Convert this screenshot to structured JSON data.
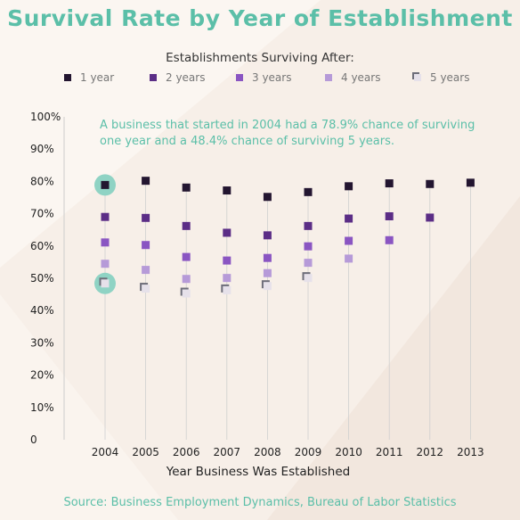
{
  "header": {
    "title": "Survival Rate by Year of Establishment"
  },
  "legend": {
    "title": "Establishments Surviving After:",
    "items": [
      {
        "label": "1 year",
        "color": "#231530"
      },
      {
        "label": "2 years",
        "color": "#5b2d86"
      },
      {
        "label": "3 years",
        "color": "#8a55c2"
      },
      {
        "label": "4 years",
        "color": "#b69ad8"
      },
      {
        "label": "5 years",
        "color": "#e6e1ea"
      }
    ]
  },
  "annotation": "A business that started in 2004 had a 78.9% chance of surviving one year and a 48.4% chance of surviving 5 years.",
  "source": "Source: Business Employment Dynamics, Bureau of Labor Statistics",
  "chart_data": {
    "type": "scatter",
    "xlabel": "Year Business Was Established",
    "ylabel": "",
    "categories": [
      "2004",
      "2005",
      "2006",
      "2007",
      "2008",
      "2009",
      "2010",
      "2011",
      "2012",
      "2013"
    ],
    "ylim": [
      0,
      100
    ],
    "yticks": [
      0,
      10,
      20,
      30,
      40,
      50,
      60,
      70,
      80,
      90,
      100
    ],
    "ytick_labels": [
      "0",
      "10%",
      "20%",
      "30%",
      "40%",
      "50%",
      "60%",
      "70%",
      "80%",
      "90%",
      "100%"
    ],
    "highlight": {
      "category": "2004",
      "series": [
        "1 year",
        "5 years"
      ],
      "color": "#8fd3c4"
    },
    "series": [
      {
        "name": "1 year",
        "color": "#231530",
        "values": [
          78.9,
          80.2,
          78.1,
          77.2,
          75.2,
          76.7,
          78.5,
          79.4,
          79.2,
          79.6
        ]
      },
      {
        "name": "2 years",
        "color": "#5b2d86",
        "values": [
          69.0,
          68.7,
          66.2,
          64.1,
          63.3,
          66.2,
          68.5,
          69.2,
          68.8,
          null
        ]
      },
      {
        "name": "3 years",
        "color": "#8a55c2",
        "values": [
          61.1,
          60.3,
          56.6,
          55.5,
          56.3,
          59.9,
          61.6,
          61.8,
          null,
          null
        ]
      },
      {
        "name": "4 years",
        "color": "#b69ad8",
        "values": [
          54.5,
          52.6,
          49.8,
          50.1,
          51.6,
          54.8,
          56.1,
          null,
          null,
          null
        ]
      },
      {
        "name": "5 years",
        "color": "#e6e1ea",
        "values": [
          48.4,
          46.8,
          45.3,
          46.3,
          47.6,
          50.1,
          null,
          null,
          null,
          null
        ]
      }
    ]
  }
}
